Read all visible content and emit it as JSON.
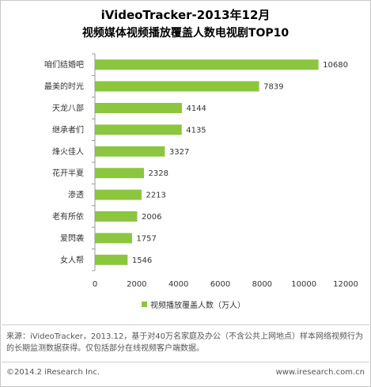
{
  "chart_data": {
    "type": "bar",
    "orientation": "horizontal",
    "title": "iVideoTracker-2013年12月",
    "subtitle": "视频媒体视频播放覆盖人数电视剧TOP10",
    "categories": [
      "咱们结婚吧",
      "最美的时光",
      "天龙八部",
      "继承者们",
      "烽火佳人",
      "花开半夏",
      "渗透",
      "老有所依",
      "爱閃袭",
      "女人帮"
    ],
    "series": [
      {
        "name": "视频播放覆盖人数（万人）",
        "values": [
          10680,
          7839,
          4144,
          4135,
          3327,
          2328,
          2213,
          2006,
          1757,
          1546
        ]
      }
    ],
    "xlim": [
      0,
      12000
    ],
    "xticks": [
      0,
      2000,
      4000,
      6000,
      8000,
      10000,
      12000
    ],
    "grid": false,
    "legend_position": "bottom",
    "bar_color": "#8cc63f"
  },
  "source_text": "来源：iVideoTracker，2013.12，基于对40万名家庭及办公（不含公共上网地点）样本网络视频行为的长期监测数据获得。仅包括部分在线视频客户端数据。",
  "footer": {
    "copyright": "©2014.2 iResearch Inc.",
    "website": "www.iresearch.com.cn"
  }
}
